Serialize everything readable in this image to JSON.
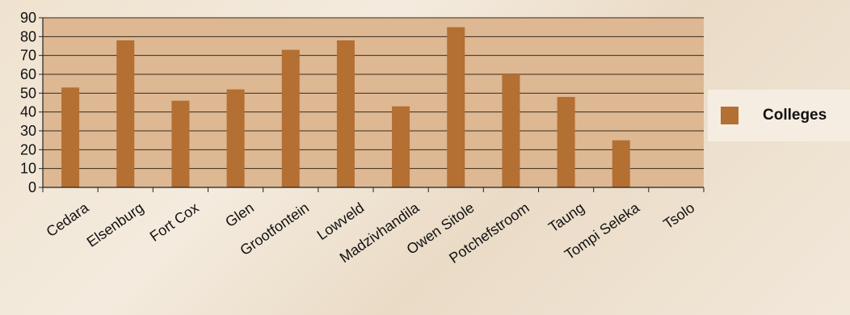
{
  "chart_data": {
    "type": "bar",
    "title": "",
    "xlabel": "",
    "ylabel": "",
    "categories": [
      "Cedara",
      "Elsenburg",
      "Fort Cox",
      "Glen",
      "Grootfontein",
      "Lowveld",
      "Madzivhandila",
      "Owen Sitole",
      "Potchefstroom",
      "Taung",
      "Tompi Seleka",
      "Tsolo"
    ],
    "series": [
      {
        "name": "Colleges",
        "values": [
          53,
          78,
          46,
          52,
          73,
          78,
          43,
          85,
          60,
          48,
          25,
          0
        ]
      }
    ],
    "ylim": [
      0,
      90
    ],
    "yticks": [
      0,
      10,
      20,
      30,
      40,
      50,
      60,
      70,
      80,
      90
    ],
    "grid": true,
    "legend_position": "right"
  },
  "colors": {
    "bar": "#b46f33",
    "plot_background": "#ddb893",
    "gridline": "#3a2a1a"
  }
}
